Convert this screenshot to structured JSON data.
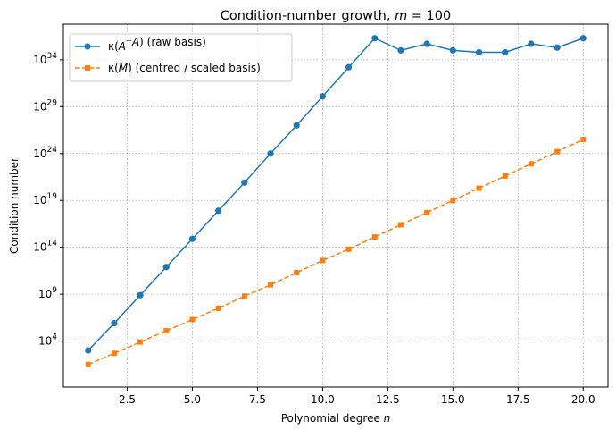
{
  "chart_data": {
    "type": "line",
    "title_main": "Condition-number growth, ",
    "title_var": "m",
    "title_eq": " = 100",
    "xlabel_main": "Polynomial degree ",
    "xlabel_var": "n",
    "ylabel": "Condition number",
    "yscale": "log",
    "xlim": [
      0.05,
      20.95
    ],
    "ylim_log10": [
      -0.9,
      37.8
    ],
    "xticks": [
      2.5,
      5.0,
      7.5,
      10.0,
      12.5,
      15.0,
      17.5,
      20.0
    ],
    "xtick_labels": [
      "2.5",
      "5.0",
      "7.5",
      "10.0",
      "12.5",
      "15.0",
      "17.5",
      "20.0"
    ],
    "yticks_log10": [
      4,
      9,
      14,
      19,
      24,
      29,
      34
    ],
    "ytick_base": "10",
    "ytick_exponents": [
      "4",
      "9",
      "14",
      "19",
      "24",
      "29",
      "34"
    ],
    "grid": true,
    "legend_position": "top-left",
    "x": [
      1,
      2,
      3,
      4,
      5,
      6,
      7,
      8,
      9,
      10,
      11,
      12,
      13,
      14,
      15,
      16,
      17,
      18,
      19,
      20
    ],
    "series": [
      {
        "legend_label": "κ(A⊤A) (raw basis)",
        "color": "#1f77b4",
        "marker": "circle",
        "line_style": "solid",
        "values_log10": [
          3.0,
          5.9,
          8.9,
          11.9,
          14.9,
          17.9,
          20.9,
          24.0,
          27.0,
          30.1,
          33.2,
          36.3,
          35.0,
          35.7,
          35.0,
          34.8,
          34.8,
          35.7,
          35.3,
          36.3
        ]
      },
      {
        "legend_label": "κ(M) (centred / scaled basis)",
        "color": "#ff7f0e",
        "marker": "square",
        "line_style": "dashed",
        "values_log10": [
          1.5,
          2.7,
          3.9,
          5.1,
          6.3,
          7.5,
          8.8,
          10.0,
          11.3,
          12.6,
          13.8,
          15.1,
          16.4,
          17.7,
          19.0,
          20.3,
          21.6,
          22.9,
          24.2,
          25.5
        ]
      }
    ]
  }
}
